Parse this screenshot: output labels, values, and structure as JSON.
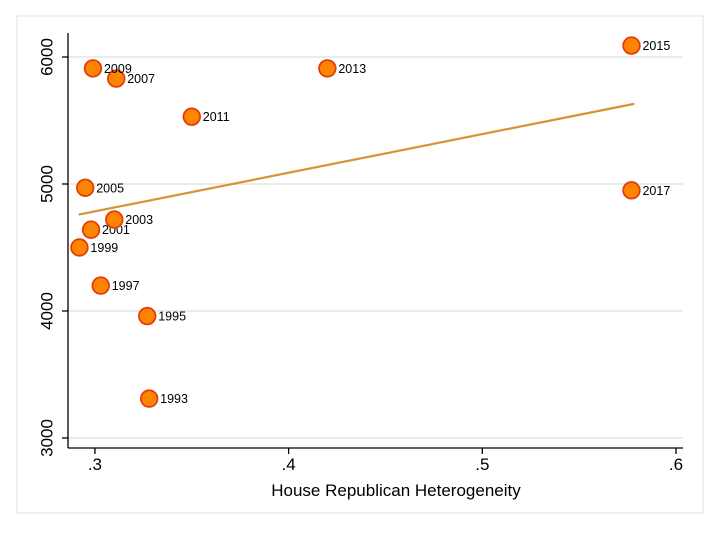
{
  "slide": {
    "background_color": "#ffffff",
    "border_color": "#e7ece9"
  },
  "chart_data": {
    "type": "scatter",
    "title": "",
    "xlabel": "House Republican Heterogeneity",
    "ylabel": "",
    "xlim": [
      0.2861,
      0.6036
    ],
    "ylim": [
      2921,
      6189
    ],
    "x_ticks": [
      0.3,
      0.4,
      0.5,
      0.6
    ],
    "x_tick_labels": [
      ".3",
      ".4",
      ".5",
      ".6"
    ],
    "y_ticks": [
      3000,
      4000,
      5000,
      6000
    ],
    "y_tick_labels": [
      "3000",
      "4000",
      "5000",
      "6000"
    ],
    "grid": "horizontal-only",
    "legend": "none",
    "points": [
      {
        "label": "1993",
        "x": 0.328,
        "y": 3310
      },
      {
        "label": "1995",
        "x": 0.327,
        "y": 3960
      },
      {
        "label": "1997",
        "x": 0.303,
        "y": 4200
      },
      {
        "label": "1999",
        "x": 0.292,
        "y": 4500
      },
      {
        "label": "2001",
        "x": 0.298,
        "y": 4640
      },
      {
        "label": "2003",
        "x": 0.31,
        "y": 4720
      },
      {
        "label": "2005",
        "x": 0.295,
        "y": 4970
      },
      {
        "label": "2007",
        "x": 0.311,
        "y": 5830
      },
      {
        "label": "2009",
        "x": 0.299,
        "y": 5910
      },
      {
        "label": "2011",
        "x": 0.35,
        "y": 5530
      },
      {
        "label": "2013",
        "x": 0.42,
        "y": 5910
      },
      {
        "label": "2015",
        "x": 0.577,
        "y": 6090
      },
      {
        "label": "2017",
        "x": 0.577,
        "y": 4950
      }
    ],
    "trend_line": {
      "x1": 0.292,
      "y1": 4760,
      "x2": 0.578,
      "y2": 5630
    },
    "colors": {
      "marker_fill": "#ff8400",
      "marker_stroke": "#e23d0d",
      "trend_line": "#d9932e",
      "grid_line": "#e6edec",
      "axis": "#000000",
      "text": "#000000"
    }
  }
}
